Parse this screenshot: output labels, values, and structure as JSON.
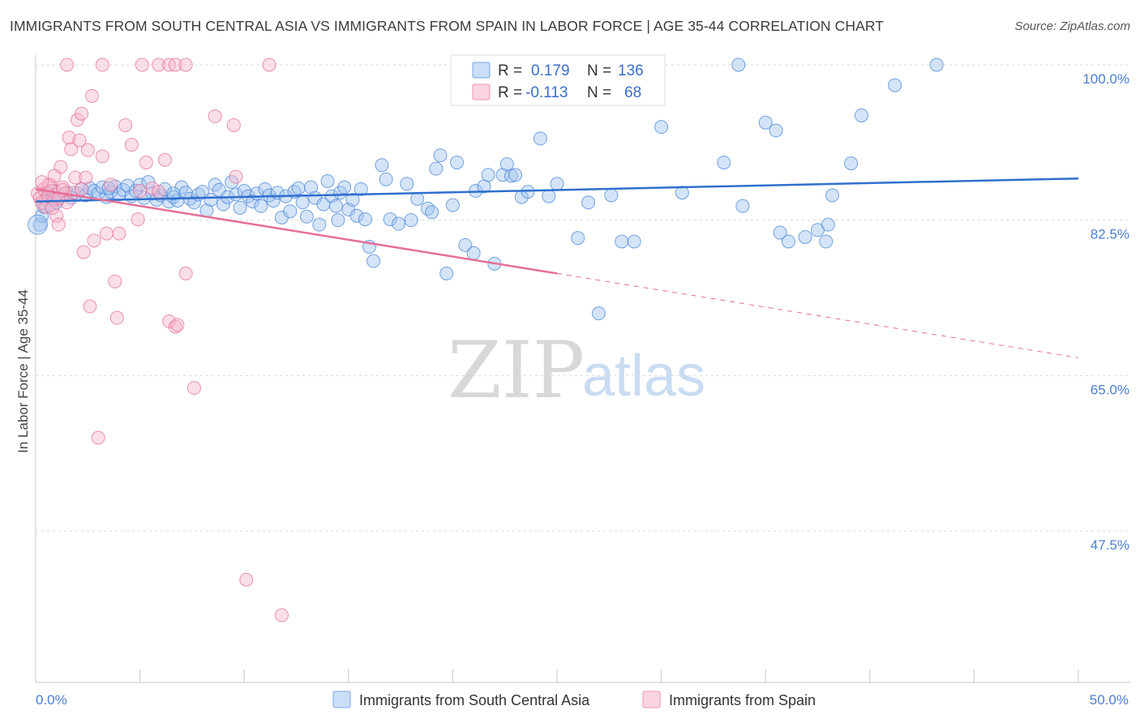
{
  "title": "IMMIGRANTS FROM SOUTH CENTRAL ASIA VS IMMIGRANTS FROM SPAIN IN LABOR FORCE | AGE 35-44 CORRELATION CHART",
  "source": "Source: ZipAtlas.com",
  "watermark": {
    "zip": "ZIP",
    "atlas": "atlas"
  },
  "legend_box": {
    "rows": [
      {
        "r_label": "R =",
        "r_value": "0.179",
        "n_label": "N =",
        "n_value": "136",
        "color": "#a9c8f2"
      },
      {
        "r_label": "R =",
        "r_value": "-0.113",
        "n_label": "N =",
        "n_value": "68",
        "color": "#f6b9cc"
      }
    ]
  },
  "chart_data": {
    "type": "scatter",
    "title": "IMMIGRANTS FROM SOUTH CENTRAL ASIA VS IMMIGRANTS FROM SPAIN IN LABOR FORCE | AGE 35-44 CORRELATION CHART",
    "xlabel": "",
    "ylabel": "In Labor Force | Age 35-44",
    "xlim": [
      0,
      50
    ],
    "ylim": [
      33,
      101.5
    ],
    "x_tick_labels": [
      "0.0%",
      "50.0%"
    ],
    "y_ticks": [
      47.5,
      65.0,
      82.5,
      100.0
    ],
    "y_tick_labels": [
      "47.5%",
      "65.0%",
      "82.5%",
      "100.0%"
    ],
    "grid": true,
    "legend_placement": "bottom-center",
    "series": [
      {
        "name": "Immigrants from South Central Asia",
        "color": "#4a86d8",
        "fill": "rgba(160,195,240,0.45)",
        "trend": {
          "x": [
            0,
            50
          ],
          "y": [
            84.6,
            87.2
          ],
          "color": "#2f6fce"
        },
        "points": [
          [
            0.2,
            82
          ],
          [
            0.3,
            83
          ],
          [
            0.4,
            84
          ],
          [
            0.5,
            84.8
          ],
          [
            0.6,
            85.5
          ],
          [
            0.7,
            84.2
          ],
          [
            0.8,
            85
          ],
          [
            0.9,
            85.8
          ],
          [
            1.0,
            84.5
          ],
          [
            1.2,
            85.2
          ],
          [
            1.5,
            85.6
          ],
          [
            1.7,
            85
          ],
          [
            2.0,
            85.5
          ],
          [
            2.2,
            86
          ],
          [
            2.4,
            85.3
          ],
          [
            2.6,
            86.1
          ],
          [
            2.8,
            85.8
          ],
          [
            3.0,
            85.5
          ],
          [
            3.2,
            86.2
          ],
          [
            3.4,
            85.1
          ],
          [
            3.6,
            85.7
          ],
          [
            3.8,
            86.3
          ],
          [
            4.0,
            85.4
          ],
          [
            4.2,
            85.9
          ],
          [
            4.4,
            86.4
          ],
          [
            4.6,
            85.2
          ],
          [
            4.8,
            85.8
          ],
          [
            5.0,
            86.5
          ],
          [
            5.2,
            85.0
          ],
          [
            5.4,
            86.8
          ],
          [
            5.6,
            85.5
          ],
          [
            5.8,
            84.8
          ],
          [
            6.0,
            85.3
          ],
          [
            6.2,
            86.0
          ],
          [
            6.4,
            84.6
          ],
          [
            6.6,
            85.1
          ],
          [
            6.8,
            84.7
          ],
          [
            7.0,
            86.2
          ],
          [
            7.2,
            85.6
          ],
          [
            7.4,
            84.9
          ],
          [
            7.6,
            84.5
          ],
          [
            7.8,
            85.4
          ],
          [
            8.0,
            85.7
          ],
          [
            8.2,
            83.6
          ],
          [
            8.4,
            84.8
          ],
          [
            8.6,
            86.5
          ],
          [
            8.8,
            85.9
          ],
          [
            9.0,
            84.3
          ],
          [
            9.2,
            85.1
          ],
          [
            9.4,
            86.8
          ],
          [
            9.6,
            85.4
          ],
          [
            9.8,
            83.9
          ],
          [
            10.0,
            85.8
          ],
          [
            10.2,
            85.2
          ],
          [
            10.4,
            84.6
          ],
          [
            10.6,
            85.5
          ],
          [
            10.8,
            84.1
          ],
          [
            11.0,
            86.0
          ],
          [
            11.2,
            85.3
          ],
          [
            11.4,
            84.7
          ],
          [
            11.6,
            85.6
          ],
          [
            11.8,
            82.8
          ],
          [
            12.0,
            85.2
          ],
          [
            12.2,
            83.5
          ],
          [
            12.4,
            85.7
          ],
          [
            12.6,
            86.1
          ],
          [
            12.8,
            84.5
          ],
          [
            13.0,
            82.9
          ],
          [
            13.2,
            86.2
          ],
          [
            13.4,
            85.0
          ],
          [
            13.6,
            82.0
          ],
          [
            13.8,
            84.3
          ],
          [
            14.0,
            86.9
          ],
          [
            14.2,
            85.2
          ],
          [
            14.4,
            84.1
          ],
          [
            14.6,
            85.6
          ],
          [
            14.8,
            86.2
          ],
          [
            15.0,
            83.7
          ],
          [
            15.2,
            84.8
          ],
          [
            15.4,
            83.0
          ],
          [
            15.6,
            86.0
          ],
          [
            15.8,
            82.6
          ],
          [
            16.0,
            79.5
          ],
          [
            16.2,
            77.9
          ],
          [
            16.6,
            88.7
          ],
          [
            16.8,
            87.1
          ],
          [
            17.0,
            82.6
          ],
          [
            17.4,
            82.1
          ],
          [
            17.8,
            86.6
          ],
          [
            18.0,
            82.5
          ],
          [
            18.3,
            84.9
          ],
          [
            18.8,
            83.8
          ],
          [
            19.0,
            83.4
          ],
          [
            19.2,
            88.3
          ],
          [
            19.4,
            89.8
          ],
          [
            19.7,
            76.5
          ],
          [
            20.0,
            84.2
          ],
          [
            20.2,
            89.0
          ],
          [
            20.6,
            79.7
          ],
          [
            21.1,
            85.8
          ],
          [
            21.5,
            86.3
          ],
          [
            21.7,
            87.6
          ],
          [
            22.0,
            77.6
          ],
          [
            22.4,
            87.6
          ],
          [
            22.6,
            88.8
          ],
          [
            22.8,
            87.5
          ],
          [
            23.0,
            87.6
          ],
          [
            23.3,
            85.1
          ],
          [
            23.6,
            85.7
          ],
          [
            24.2,
            91.7
          ],
          [
            24.6,
            85.2
          ],
          [
            25.0,
            86.6
          ],
          [
            26.0,
            80.5
          ],
          [
            26.5,
            84.5
          ],
          [
            27.0,
            72.0
          ],
          [
            27.6,
            85.3
          ],
          [
            28.1,
            80.1
          ],
          [
            28.7,
            80.1
          ],
          [
            30.0,
            93.0
          ],
          [
            31.0,
            85.6
          ],
          [
            33.0,
            89.0
          ],
          [
            33.9,
            84.1
          ],
          [
            33.7,
            100
          ],
          [
            35.0,
            93.5
          ],
          [
            35.5,
            92.6
          ],
          [
            35.7,
            81.1
          ],
          [
            36.1,
            80.1
          ],
          [
            36.9,
            80.6
          ],
          [
            37.5,
            81.4
          ],
          [
            38.0,
            82.0
          ],
          [
            37.9,
            80.1
          ],
          [
            38.2,
            85.3
          ],
          [
            39.1,
            88.9
          ],
          [
            39.6,
            94.3
          ],
          [
            41.2,
            97.7
          ],
          [
            43.2,
            100
          ],
          [
            21.0,
            78.8
          ],
          [
            14.5,
            82.5
          ],
          [
            6.6,
            85.5
          ],
          [
            3.5,
            86.1
          ]
        ]
      },
      {
        "name": "Immigrants from Spain",
        "color": "#e66f98",
        "fill": "rgba(246,185,204,0.45)",
        "trend": {
          "x": [
            0,
            25
          ],
          "y": [
            86.0,
            76.5
          ],
          "color": "#e66f98"
        },
        "trend_dashed": {
          "x": [
            25,
            50
          ],
          "y": [
            76.5,
            67.0
          ]
        },
        "points": [
          [
            0.1,
            85.5
          ],
          [
            0.2,
            85
          ],
          [
            0.3,
            84.5
          ],
          [
            0.4,
            86
          ],
          [
            0.5,
            84
          ],
          [
            0.6,
            85.2
          ],
          [
            0.7,
            86.5
          ],
          [
            0.8,
            85.8
          ],
          [
            0.9,
            84.8
          ],
          [
            1.0,
            83
          ],
          [
            1.1,
            82
          ],
          [
            1.2,
            88.5
          ],
          [
            1.3,
            86.2
          ],
          [
            1.4,
            85.5
          ],
          [
            1.5,
            84.5
          ],
          [
            1.6,
            91.8
          ],
          [
            1.7,
            90.5
          ],
          [
            1.8,
            85.6
          ],
          [
            1.9,
            87.3
          ],
          [
            2.0,
            93.8
          ],
          [
            2.1,
            91.5
          ],
          [
            2.2,
            94.5
          ],
          [
            2.3,
            78.9
          ],
          [
            2.4,
            87.3
          ],
          [
            2.5,
            90.4
          ],
          [
            2.6,
            72.8
          ],
          [
            2.7,
            96.5
          ],
          [
            2.8,
            80.2
          ],
          [
            3.0,
            58.0
          ],
          [
            3.2,
            89.7
          ],
          [
            3.4,
            81.0
          ],
          [
            3.6,
            86.5
          ],
          [
            3.8,
            75.6
          ],
          [
            3.9,
            71.5
          ],
          [
            4.0,
            81.0
          ],
          [
            4.3,
            93.2
          ],
          [
            4.6,
            91.0
          ],
          [
            4.9,
            82.6
          ],
          [
            5.0,
            85.8
          ],
          [
            5.3,
            89.0
          ],
          [
            5.6,
            86.1
          ],
          [
            5.9,
            85.7
          ],
          [
            6.2,
            89.3
          ],
          [
            6.4,
            71.1
          ],
          [
            6.7,
            70.5
          ],
          [
            6.8,
            70.7
          ],
          [
            7.2,
            76.5
          ],
          [
            7.6,
            63.6
          ],
          [
            1.5,
            100
          ],
          [
            3.2,
            100
          ],
          [
            5.1,
            100
          ],
          [
            5.9,
            100
          ],
          [
            6.4,
            100
          ],
          [
            6.7,
            100
          ],
          [
            7.2,
            100
          ],
          [
            11.2,
            100
          ],
          [
            8.6,
            94.2
          ],
          [
            9.5,
            93.2
          ],
          [
            9.6,
            87.4
          ],
          [
            10.1,
            42.0
          ],
          [
            11.8,
            38.0
          ],
          [
            0.6,
            86.5
          ],
          [
            0.9,
            87.5
          ],
          [
            1.3,
            85.9
          ],
          [
            0.3,
            86.8
          ],
          [
            2.2,
            86.0
          ],
          [
            1.1,
            84.9
          ],
          [
            0.8,
            83.9
          ]
        ]
      }
    ]
  },
  "axis": {
    "ylabel": "In Labor Force | Age 35-44",
    "x_min_label": "0.0%",
    "x_max_label": "50.0%"
  }
}
